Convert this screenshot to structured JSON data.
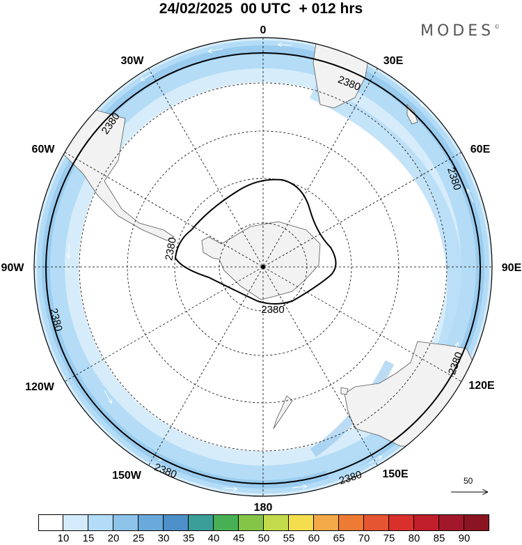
{
  "header": {
    "title": "24/02/2025  00 UTC  + 012 hrs",
    "brand": "MODES",
    "brand_mark": "©"
  },
  "map": {
    "projection": "south polar stereographic",
    "center": "South Pole",
    "longitude_labels": {
      "top": "0",
      "right_upper": "30E",
      "right_mid_upper": "60E",
      "right": "90E",
      "right_mid_lower": "120E",
      "right_lower": "150E",
      "bottom": "180",
      "left_lower": "150W",
      "left_mid_lower": "120W",
      "left": "90W",
      "left_mid_upper": "60W",
      "left_upper": "30W"
    },
    "contours": {
      "outer_label": "2380",
      "inner_label": "2380"
    },
    "vector_reference": {
      "value": "50"
    },
    "colors": {
      "jet_light": "#d6ecfa",
      "jet_mid": "#b4dcf6",
      "jet_strong": "#8ec4ec",
      "land": "#f2f2f2"
    }
  },
  "legend": {
    "ticks": [
      "10",
      "15",
      "20",
      "25",
      "30",
      "35",
      "40",
      "45",
      "50",
      "55",
      "60",
      "65",
      "70",
      "75",
      "80",
      "85",
      "90"
    ],
    "colors": [
      "#ffffff",
      "#d4ebfb",
      "#b2dcf7",
      "#8ec3ea",
      "#6aa9dc",
      "#4d8fc8",
      "#3b9e98",
      "#47b055",
      "#84c446",
      "#c3db4a",
      "#f5de4d",
      "#f3a947",
      "#ee7b34",
      "#e65531",
      "#d9302c",
      "#c01e2b",
      "#a3172a",
      "#8a1420"
    ]
  }
}
